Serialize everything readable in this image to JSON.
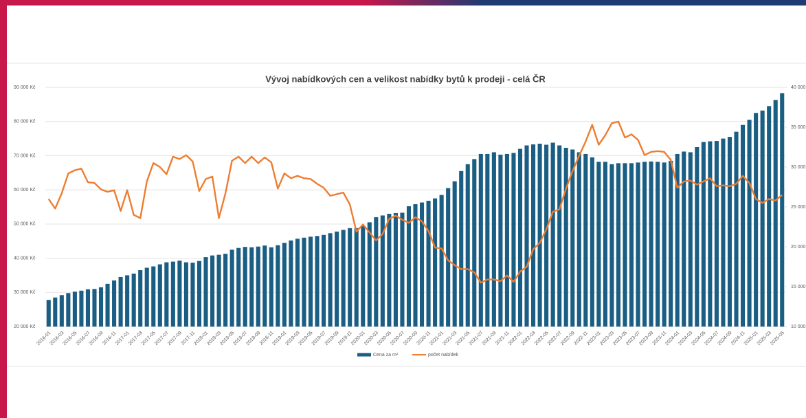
{
  "chart_data": {
    "type": "bar",
    "title": "Vývoj nabídkových cen a velikost nabídky bytů k prodeji - celá ČR",
    "categories": [
      "2016-01",
      null,
      "2016-03",
      null,
      "2016-05",
      null,
      "2016-07",
      null,
      "2016-09",
      null,
      "2016-11",
      null,
      "2017-01",
      null,
      "2017-03",
      null,
      "2017-05",
      null,
      "2017-07",
      null,
      "2017-09",
      null,
      "2017-11",
      null,
      "2018-01",
      null,
      "2018-03",
      null,
      "2018-05",
      null,
      "2018-07",
      null,
      "2018-09",
      null,
      "2018-11",
      null,
      "2019-01",
      null,
      "2019-03",
      null,
      "2019-05",
      null,
      "2019-07",
      null,
      "2019-09",
      null,
      "2019-11",
      null,
      "2020-01",
      null,
      "2020-03",
      null,
      "2020-05",
      null,
      "2020-07",
      null,
      "2020-09",
      null,
      "2020-11",
      null,
      "2021-01",
      null,
      "2021-03",
      null,
      "2021-05",
      null,
      "2021-07",
      null,
      "2021-09",
      null,
      "2021-11",
      null,
      "2022-01",
      null,
      "2022-03",
      null,
      "2022-05",
      null,
      "2022-07",
      null,
      "2022-09",
      null,
      "2022-11",
      null,
      "2023-01",
      null,
      "2023-03",
      null,
      "2023-05",
      null,
      "2023-07",
      null,
      "2023-09",
      null,
      "2023-11",
      null,
      "2024-01",
      null,
      "2024-03",
      null,
      "2024-05",
      null,
      "2024-07",
      null,
      "2024-09",
      null,
      "2024-11",
      null,
      "2025-01",
      null,
      "2025-03",
      null,
      "2025-05"
    ],
    "series": [
      {
        "name": "Cena za m²",
        "type": "bar",
        "color": "#1b5e84",
        "values": [
          27800,
          28500,
          29200,
          29800,
          30200,
          30500,
          30900,
          31000,
          31500,
          32500,
          33500,
          34500,
          35000,
          35500,
          36500,
          37200,
          37600,
          38200,
          38800,
          39000,
          39300,
          38800,
          38700,
          39200,
          40300,
          40800,
          41000,
          41300,
          42500,
          43000,
          43300,
          43200,
          43400,
          43700,
          43200,
          43800,
          44500,
          45200,
          45700,
          46000,
          46300,
          46500,
          46800,
          47300,
          47800,
          48300,
          48800,
          48800,
          49500,
          50500,
          52000,
          52500,
          53000,
          53200,
          53300,
          55200,
          55800,
          56300,
          56800,
          57500,
          58500,
          60500,
          62500,
          65500,
          67500,
          69000,
          70500,
          70500,
          71000,
          70300,
          70500,
          70800,
          72000,
          73000,
          73300,
          73500,
          73200,
          73800,
          73000,
          72300,
          71800,
          71000,
          70500,
          69500,
          68200,
          68200,
          67500,
          67800,
          67800,
          67800,
          68000,
          68200,
          68300,
          68200,
          68000,
          68500,
          70500,
          71200,
          71000,
          72500,
          74000,
          74200,
          74300,
          75000,
          75500,
          77000,
          79000,
          80500,
          82500,
          83200,
          84500,
          86300,
          88300
        ]
      },
      {
        "name": "počet nabídek",
        "type": "line",
        "axis": "y2",
        "color": "#ed7d31",
        "values": [
          26000,
          24800,
          26700,
          29200,
          29600,
          29800,
          28100,
          28000,
          27200,
          26900,
          27100,
          24500,
          27100,
          24000,
          23600,
          28200,
          30500,
          30000,
          29100,
          31300,
          31000,
          31500,
          30700,
          27000,
          28500,
          28800,
          23600,
          26700,
          30800,
          31300,
          30500,
          31300,
          30500,
          31200,
          30600,
          27300,
          29200,
          28600,
          28900,
          28600,
          28500,
          27900,
          27400,
          26400,
          26600,
          26800,
          25300,
          21900,
          22800,
          21800,
          20800,
          21600,
          23500,
          23900,
          23400,
          23000,
          23700,
          23200,
          22000,
          19900,
          19800,
          18300,
          17700,
          17200,
          17200,
          16800,
          15500,
          15900,
          15900,
          15700,
          16400,
          15600,
          16900,
          17500,
          19700,
          20500,
          22200,
          24400,
          24700,
          27300,
          29500,
          31400,
          33200,
          35300,
          32800,
          34000,
          35500,
          35700,
          33700,
          34100,
          33400,
          31500,
          31900,
          32000,
          31900,
          30900,
          27400,
          28200,
          28300,
          27800,
          28200,
          28600,
          27600,
          27700,
          27600,
          27900,
          28900,
          28000,
          26000,
          25500,
          26000,
          25800,
          26500
        ]
      }
    ],
    "ylim": [
      20000,
      90000
    ],
    "yticks": [
      {
        "value": 20000,
        "label": "20 000 Kč"
      },
      {
        "value": 30000,
        "label": "30 000 Kč"
      },
      {
        "value": 40000,
        "label": "40 000 Kč"
      },
      {
        "value": 50000,
        "label": "50 000 Kč"
      },
      {
        "value": 60000,
        "label": "60 000 Kč"
      },
      {
        "value": 70000,
        "label": "70 000 Kč"
      },
      {
        "value": 80000,
        "label": "80 000 Kč"
      },
      {
        "value": 90000,
        "label": "90 000 Kč"
      }
    ],
    "y2lim": [
      10000,
      40000
    ],
    "y2ticks": [
      {
        "value": 10000,
        "label": "10 000"
      },
      {
        "value": 15000,
        "label": "15 000"
      },
      {
        "value": 20000,
        "label": "20 000"
      },
      {
        "value": 25000,
        "label": "25 000"
      },
      {
        "value": 30000,
        "label": "30 000"
      },
      {
        "value": 35000,
        "label": "35 000"
      },
      {
        "value": 40000,
        "label": "40 000"
      }
    ],
    "grid": true,
    "legend": "bottom"
  }
}
